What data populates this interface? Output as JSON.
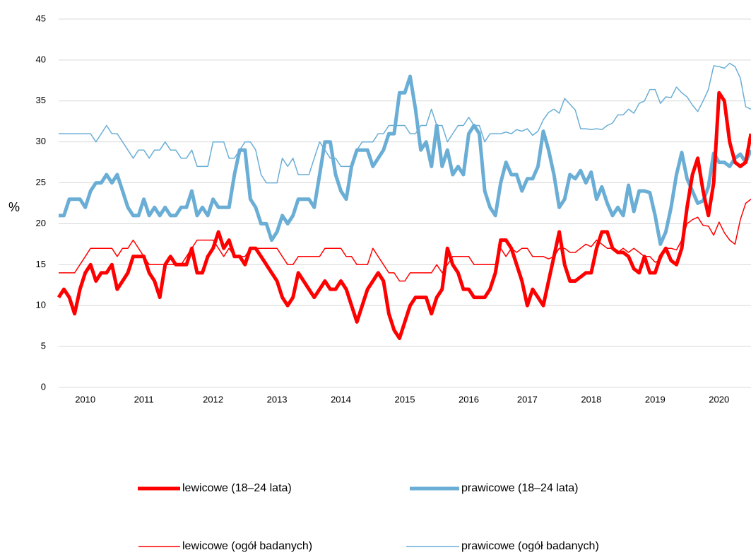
{
  "chart_data": {
    "type": "line",
    "y_label": "%",
    "categories": [
      null,
      null,
      null,
      null,
      null,
      "2010",
      null,
      null,
      null,
      null,
      null,
      null,
      null,
      null,
      null,
      null,
      "2011",
      null,
      null,
      null,
      null,
      null,
      null,
      null,
      null,
      null,
      null,
      null,
      null,
      "2012",
      null,
      null,
      null,
      null,
      null,
      null,
      null,
      null,
      null,
      null,
      null,
      "2013",
      null,
      null,
      null,
      null,
      null,
      null,
      null,
      null,
      null,
      null,
      null,
      "2014",
      null,
      null,
      null,
      null,
      null,
      null,
      null,
      null,
      null,
      null,
      null,
      "2015",
      null,
      null,
      null,
      null,
      null,
      null,
      null,
      null,
      null,
      null,
      null,
      "2016",
      null,
      null,
      null,
      null,
      null,
      null,
      null,
      null,
      null,
      null,
      "2017",
      null,
      null,
      null,
      null,
      null,
      null,
      null,
      null,
      null,
      null,
      null,
      "2018",
      null,
      null,
      null,
      null,
      null,
      null,
      null,
      null,
      null,
      null,
      null,
      "2019",
      null,
      null,
      null,
      null,
      null,
      null,
      null,
      null,
      null,
      null,
      null,
      "2020",
      null,
      null,
      null,
      null,
      null,
      null
    ],
    "series": [
      {
        "name": "lewicowe (18–24 lata)",
        "color": "#ff0000",
        "width": 5,
        "values": [
          11,
          12,
          11,
          9,
          12,
          14,
          15,
          13,
          14,
          14,
          15,
          12,
          13,
          14,
          16,
          16,
          16,
          14,
          13,
          11,
          15,
          16,
          15,
          15,
          15,
          17,
          14,
          14,
          16,
          17,
          19,
          17,
          18,
          16,
          16,
          15,
          17,
          17,
          16,
          15,
          14,
          13,
          11,
          10,
          11,
          14,
          13,
          12,
          11,
          12,
          13,
          12,
          12,
          13,
          12,
          10,
          8,
          10,
          12,
          13,
          14,
          13,
          9,
          7,
          6,
          8,
          10,
          11,
          11,
          11,
          9,
          11,
          12,
          17,
          15,
          14,
          12,
          12,
          11,
          11,
          11,
          12,
          14,
          18,
          18,
          17,
          15,
          13,
          10,
          12,
          11,
          10,
          13,
          16,
          19,
          15,
          13,
          13,
          13.5,
          14,
          14,
          17,
          19,
          19,
          17,
          16.5,
          16.5,
          16,
          14.5,
          14,
          16,
          14,
          14,
          16,
          17,
          15.5,
          15,
          17,
          22,
          26,
          28,
          24,
          21,
          25,
          36,
          35,
          30,
          27.5,
          27,
          27.5,
          31
        ]
      },
      {
        "name": "prawicowe (18–24 lata)",
        "color": "#6aaed6",
        "width": 5,
        "values": [
          21,
          21,
          23,
          23,
          23,
          22,
          24,
          25,
          25,
          26,
          25,
          26,
          24,
          22,
          21,
          21,
          23,
          21,
          22,
          21,
          22,
          21,
          21,
          22,
          22,
          24,
          21,
          22,
          21,
          23,
          22,
          22,
          22,
          26,
          29,
          29,
          23,
          22,
          20,
          20,
          18,
          19,
          21,
          20,
          21,
          23,
          23,
          23,
          22,
          26,
          30,
          30,
          26,
          24,
          23,
          27,
          29,
          29,
          29,
          27,
          28,
          29,
          31,
          31,
          36,
          36,
          38,
          34,
          29,
          30,
          27,
          32,
          27,
          29,
          26,
          27,
          26,
          31,
          32,
          31,
          24,
          22,
          21,
          25,
          27.5,
          26,
          26,
          24,
          25.5,
          25.5,
          27,
          31.3,
          29,
          26,
          22,
          23,
          26,
          25.5,
          26.5,
          25,
          26.3,
          23,
          24.5,
          22.5,
          21,
          22,
          21,
          24.7,
          21.5,
          24,
          24,
          23.8,
          21,
          17.5,
          19,
          22,
          26,
          28.7,
          25.5,
          24,
          22.5,
          22.8,
          24.5,
          28.6,
          27.5,
          27.5,
          27,
          28,
          28.5,
          27.5,
          29
        ]
      },
      {
        "name": "lewicowe (ogół badanych)",
        "color": "#ff0000",
        "width": 1.5,
        "values": [
          14,
          14,
          14,
          14,
          15,
          16,
          17,
          17,
          17,
          17,
          17,
          16,
          17,
          17,
          18,
          17,
          16,
          15,
          15,
          15,
          15,
          15,
          15,
          15,
          16,
          17,
          18,
          18,
          18,
          18,
          17,
          16,
          17,
          16,
          16,
          16,
          17,
          17,
          17,
          17,
          17,
          17,
          16,
          15,
          15,
          16,
          16,
          16,
          16,
          16,
          17,
          17,
          17,
          17,
          16,
          16,
          15,
          15,
          15,
          17,
          16,
          15,
          14,
          14,
          13,
          13,
          14,
          14,
          14,
          14,
          14,
          15,
          14,
          15,
          16,
          16,
          16,
          16,
          15,
          15,
          15,
          15,
          15,
          17,
          16,
          17,
          16.5,
          17,
          17,
          16,
          16,
          16,
          15.7,
          16,
          17,
          17,
          16.5,
          16.5,
          17,
          17.5,
          17.2,
          18,
          17.5,
          17,
          17,
          16.5,
          17,
          16.5,
          17,
          16.5,
          16,
          16,
          15.3,
          15.5,
          17,
          17,
          16.8,
          18,
          20,
          20.5,
          20.8,
          19.8,
          19.7,
          18.6,
          20.2,
          18.9,
          18,
          17.5,
          20.5,
          22.5,
          23
        ]
      },
      {
        "name": "prawicowe  (ogół badanych)",
        "color": "#6aaed6",
        "width": 1.5,
        "values": [
          31,
          31,
          31,
          31,
          31,
          31,
          31,
          30,
          31,
          32,
          31,
          31,
          30,
          29,
          28,
          29,
          29,
          28,
          29,
          29,
          30,
          29,
          29,
          28,
          28,
          29,
          27,
          27,
          27,
          30,
          30,
          30,
          28,
          28,
          29,
          30,
          30,
          29,
          26,
          25,
          25,
          25,
          28,
          27,
          28,
          26,
          26,
          26,
          28,
          30,
          29,
          28,
          28,
          27,
          27,
          27,
          29,
          30,
          30,
          30,
          31,
          31,
          32,
          32,
          32,
          32,
          31,
          31,
          32,
          32,
          34,
          32,
          32,
          30,
          31,
          32,
          32,
          33,
          32,
          32,
          30,
          31,
          31,
          31,
          31.2,
          31,
          31.5,
          31.3,
          31.6,
          30.8,
          31.3,
          32.7,
          33.6,
          34,
          33.5,
          35.3,
          34.6,
          33.9,
          31.6,
          31.6,
          31.5,
          31.6,
          31.5,
          32,
          32.3,
          33.3,
          33.3,
          34,
          33.5,
          34.7,
          35,
          36.4,
          36.4,
          34.7,
          35.5,
          35.4,
          36.7,
          36,
          35.5,
          34.5,
          33.7,
          35,
          36.4,
          39.3,
          39.2,
          39,
          39.6,
          39.2,
          37.8,
          34.3,
          34
        ]
      }
    ],
    "ylim": [
      0,
      45
    ],
    "yticks": [
      0,
      5,
      10,
      15,
      20,
      25,
      30,
      35,
      40,
      45
    ],
    "grid": true
  }
}
